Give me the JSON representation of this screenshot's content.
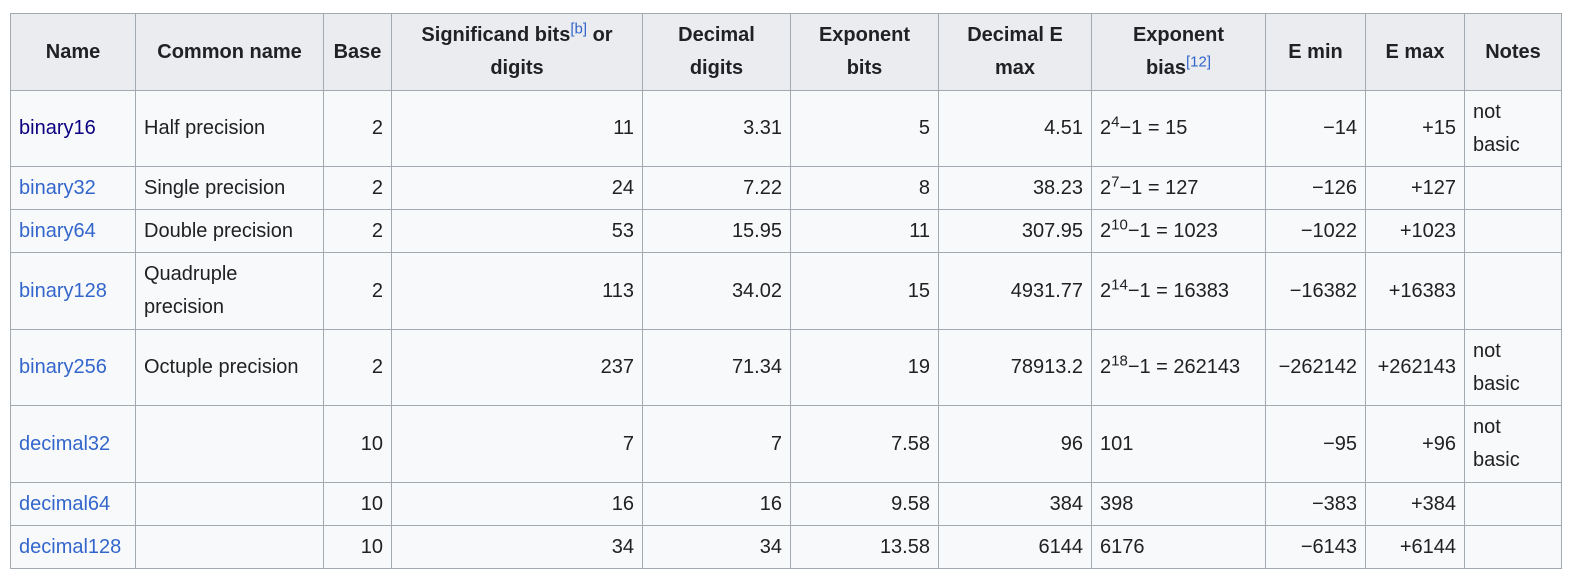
{
  "headers": {
    "name": "Name",
    "common_name": "Common name",
    "base": "Base",
    "significand_pre": "Significand bits",
    "significand_ref": "[b]",
    "significand_post": " or digits",
    "decimal_digits": "Decimal digits",
    "exponent_bits": "Exponent bits",
    "decimal_e_max": "Decimal E max",
    "exponent_bias": "Exponent bias",
    "exponent_bias_ref": "[12]",
    "e_min": "E min",
    "e_max": "E max",
    "notes": "Notes"
  },
  "rows": [
    {
      "name": "binary16",
      "common": "Half precision",
      "base": "2",
      "sig": "11",
      "dec_digits": "3.31",
      "exp_bits": "5",
      "dec_emax": "4.51",
      "bias_base": "2",
      "bias_exp": "4",
      "bias_rest": "−1 = 15",
      "emin": "−14",
      "emax": "+15",
      "notes": "not basic"
    },
    {
      "name": "binary32",
      "common": "Single precision",
      "base": "2",
      "sig": "24",
      "dec_digits": "7.22",
      "exp_bits": "8",
      "dec_emax": "38.23",
      "bias_base": "2",
      "bias_exp": "7",
      "bias_rest": "−1 = 127",
      "emin": "−126",
      "emax": "+127",
      "notes": ""
    },
    {
      "name": "binary64",
      "common": "Double precision",
      "base": "2",
      "sig": "53",
      "dec_digits": "15.95",
      "exp_bits": "11",
      "dec_emax": "307.95",
      "bias_base": "2",
      "bias_exp": "10",
      "bias_rest": "−1 = 1023",
      "emin": "−1022",
      "emax": "+1023",
      "notes": ""
    },
    {
      "name": "binary128",
      "common": "Quadruple precision",
      "base": "2",
      "sig": "113",
      "dec_digits": "34.02",
      "exp_bits": "15",
      "dec_emax": "4931.77",
      "bias_base": "2",
      "bias_exp": "14",
      "bias_rest": "−1 = 16383",
      "emin": "−16382",
      "emax": "+16383",
      "notes": ""
    },
    {
      "name": "binary256",
      "common": "Octuple precision",
      "base": "2",
      "sig": "237",
      "dec_digits": "71.34",
      "exp_bits": "19",
      "dec_emax": "78913.2",
      "bias_base": "2",
      "bias_exp": "18",
      "bias_rest": "−1 = 262143",
      "emin": "−262142",
      "emax": "+262143",
      "notes": "not basic"
    },
    {
      "name": "decimal32",
      "common": "",
      "base": "10",
      "sig": "7",
      "dec_digits": "7",
      "exp_bits": "7.58",
      "dec_emax": "96",
      "bias_plain": "101",
      "emin": "−95",
      "emax": "+96",
      "notes": "not basic"
    },
    {
      "name": "decimal64",
      "common": "",
      "base": "10",
      "sig": "16",
      "dec_digits": "16",
      "exp_bits": "9.58",
      "dec_emax": "384",
      "bias_plain": "398",
      "emin": "−383",
      "emax": "+384",
      "notes": ""
    },
    {
      "name": "decimal128",
      "common": "",
      "base": "10",
      "sig": "34",
      "dec_digits": "34",
      "exp_bits": "13.58",
      "dec_emax": "6144",
      "bias_plain": "6176",
      "emin": "−6143",
      "emax": "+6144",
      "notes": ""
    }
  ]
}
